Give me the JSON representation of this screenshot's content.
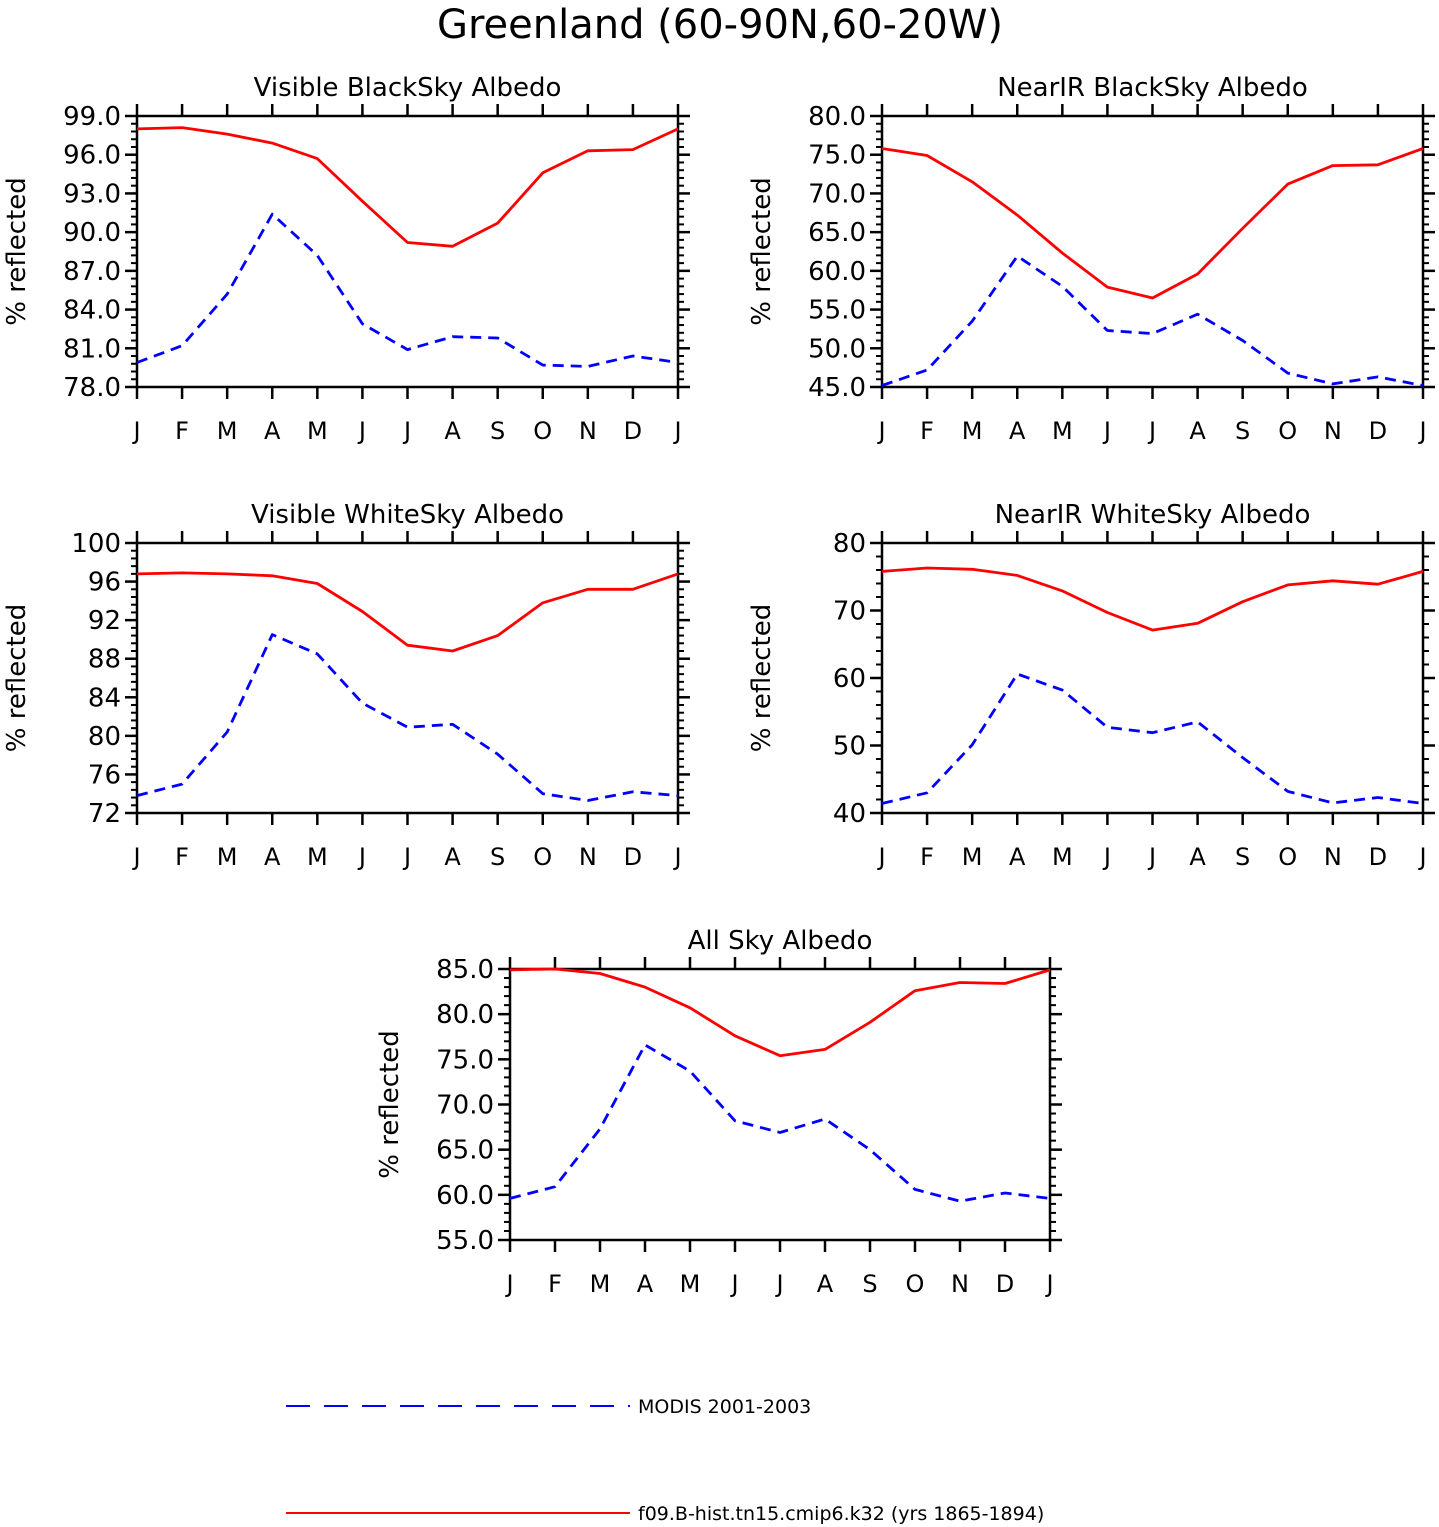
{
  "page_title": "Greenland (60-90N,60-20W)",
  "colors": {
    "model": "#ff0000",
    "obs": "#0000ff",
    "axis": "#000000"
  },
  "legend": {
    "obs_label": "MODIS 2001-2003",
    "model_label": "f09.B-hist.tn15.cmip6.k32 (yrs 1865-1894)"
  },
  "chart_data": [
    {
      "type": "line",
      "title": "Visible BlackSky Albedo",
      "ylabel": "% reflected",
      "categories": [
        "J",
        "F",
        "M",
        "A",
        "M",
        "J",
        "J",
        "A",
        "S",
        "O",
        "N",
        "D",
        "J"
      ],
      "ylim": [
        78,
        99
      ],
      "yticks": [
        "78.0",
        "81.0",
        "84.0",
        "87.0",
        "90.0",
        "93.0",
        "96.0",
        "99.0"
      ],
      "series": [
        {
          "name": "f09.B-hist.tn15.cmip6.k32 (yrs 1865-1894)",
          "style": "solid",
          "values": [
            98.0,
            98.1,
            97.6,
            96.9,
            95.7,
            92.4,
            89.2,
            88.9,
            90.7,
            94.6,
            96.3,
            96.4,
            98.0
          ]
        },
        {
          "name": "MODIS 2001-2003",
          "style": "dashed",
          "values": [
            79.9,
            81.2,
            85.2,
            91.4,
            88.2,
            82.9,
            80.9,
            81.9,
            81.8,
            79.7,
            79.6,
            80.4,
            79.9
          ]
        }
      ]
    },
    {
      "type": "line",
      "title": "NearIR BlackSky Albedo",
      "ylabel": "% reflected",
      "categories": [
        "J",
        "F",
        "M",
        "A",
        "M",
        "J",
        "J",
        "A",
        "S",
        "O",
        "N",
        "D",
        "J"
      ],
      "ylim": [
        45,
        80
      ],
      "yticks": [
        "45.0",
        "50.0",
        "55.0",
        "60.0",
        "65.0",
        "70.0",
        "75.0",
        "80.0"
      ],
      "series": [
        {
          "name": "f09.B-hist.tn15.cmip6.k32 (yrs 1865-1894)",
          "style": "solid",
          "values": [
            75.8,
            74.9,
            71.5,
            67.2,
            62.3,
            57.9,
            56.5,
            59.6,
            65.5,
            71.2,
            73.6,
            73.7,
            75.8
          ]
        },
        {
          "name": "MODIS 2001-2003",
          "style": "dashed",
          "values": [
            45.2,
            47.2,
            53.5,
            61.9,
            58.0,
            52.3,
            51.9,
            54.4,
            51.0,
            46.8,
            45.4,
            46.3,
            45.2
          ]
        }
      ]
    },
    {
      "type": "line",
      "title": "Visible WhiteSky Albedo",
      "ylabel": "% reflected",
      "categories": [
        "J",
        "F",
        "M",
        "A",
        "M",
        "J",
        "J",
        "A",
        "S",
        "O",
        "N",
        "D",
        "J"
      ],
      "ylim": [
        72,
        100
      ],
      "yticks": [
        "72",
        "76",
        "80",
        "84",
        "88",
        "92",
        "96",
        "100"
      ],
      "series": [
        {
          "name": "f09.B-hist.tn15.cmip6.k32 (yrs 1865-1894)",
          "style": "solid",
          "values": [
            96.8,
            96.9,
            96.8,
            96.6,
            95.8,
            92.9,
            89.4,
            88.8,
            90.4,
            93.8,
            95.2,
            95.2,
            96.8
          ]
        },
        {
          "name": "MODIS 2001-2003",
          "style": "dashed",
          "values": [
            73.8,
            75.0,
            80.4,
            90.5,
            88.5,
            83.4,
            80.9,
            81.2,
            78.1,
            74.0,
            73.3,
            74.2,
            73.8
          ]
        }
      ]
    },
    {
      "type": "line",
      "title": "NearIR WhiteSky Albedo",
      "ylabel": "% reflected",
      "categories": [
        "J",
        "F",
        "M",
        "A",
        "M",
        "J",
        "J",
        "A",
        "S",
        "O",
        "N",
        "D",
        "J"
      ],
      "ylim": [
        40,
        80
      ],
      "yticks": [
        "40",
        "50",
        "60",
        "70",
        "80"
      ],
      "series": [
        {
          "name": "f09.B-hist.tn15.cmip6.k32 (yrs 1865-1894)",
          "style": "solid",
          "values": [
            75.8,
            76.3,
            76.1,
            75.2,
            72.9,
            69.7,
            67.1,
            68.1,
            71.3,
            73.8,
            74.4,
            73.9,
            75.8
          ]
        },
        {
          "name": "MODIS 2001-2003",
          "style": "dashed",
          "values": [
            41.4,
            43.0,
            50.1,
            60.6,
            58.2,
            52.7,
            51.9,
            53.5,
            48.2,
            43.2,
            41.5,
            42.3,
            41.4
          ]
        }
      ]
    },
    {
      "type": "line",
      "title": "All Sky Albedo",
      "ylabel": "% reflected",
      "categories": [
        "J",
        "F",
        "M",
        "A",
        "M",
        "J",
        "J",
        "A",
        "S",
        "O",
        "N",
        "D",
        "J"
      ],
      "ylim": [
        55,
        85
      ],
      "yticks": [
        "55.0",
        "60.0",
        "65.0",
        "70.0",
        "75.0",
        "80.0",
        "85.0"
      ],
      "series": [
        {
          "name": "f09.B-hist.tn15.cmip6.k32 (yrs 1865-1894)",
          "style": "solid",
          "values": [
            84.9,
            85.0,
            84.5,
            83.0,
            80.7,
            77.6,
            75.4,
            76.1,
            79.1,
            82.6,
            83.5,
            83.4,
            84.9
          ]
        },
        {
          "name": "MODIS 2001-2003",
          "style": "dashed",
          "values": [
            59.6,
            60.9,
            67.3,
            76.6,
            73.7,
            68.2,
            66.9,
            68.4,
            65.0,
            60.6,
            59.3,
            60.2,
            59.6
          ]
        }
      ]
    }
  ]
}
